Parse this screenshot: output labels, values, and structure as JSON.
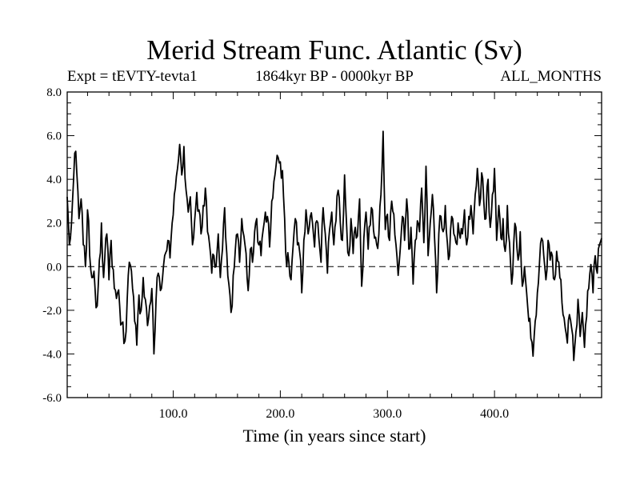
{
  "chart_data": {
    "type": "line",
    "title": "Merid Stream Func. Atlantic (Sv)",
    "subtitle": "1864kyr BP - 0000kyr BP",
    "left_label": "Expt = tEVTY-tevta1",
    "right_label": "ALL_MONTHS",
    "xlabel": "Time (in years since start)",
    "ylabel": "",
    "xlim": [
      1,
      500
    ],
    "ylim": [
      -6.0,
      8.0
    ],
    "x_ticks": [
      100,
      200,
      300,
      400
    ],
    "x_tick_labels": [
      "100.0",
      "200.0",
      "300.0",
      "400.0"
    ],
    "y_ticks": [
      -6,
      -4,
      -2,
      0,
      2,
      4,
      6,
      8
    ],
    "y_tick_labels": [
      "-6.0",
      "-4.0",
      "-2.0",
      "0.0",
      "2.0",
      "4.0",
      "6.0",
      "8.0"
    ],
    "reference_line": 0.0,
    "series_color": "#000000",
    "anchor_points": [
      [
        1,
        3.2
      ],
      [
        3,
        1.0
      ],
      [
        5,
        2.0
      ],
      [
        7,
        4.0
      ],
      [
        8,
        5.2
      ],
      [
        10,
        4.3
      ],
      [
        12,
        2.2
      ],
      [
        14,
        3.1
      ],
      [
        16,
        1.0
      ],
      [
        18,
        0.0
      ],
      [
        20,
        2.6
      ],
      [
        22,
        0.5
      ],
      [
        25,
        -0.5
      ],
      [
        27,
        -1.0
      ],
      [
        29,
        -1.8
      ],
      [
        31,
        0.3
      ],
      [
        33,
        2.0
      ],
      [
        35,
        -0.5
      ],
      [
        38,
        1.5
      ],
      [
        40,
        -0.6
      ],
      [
        42,
        1.2
      ],
      [
        45,
        -1.0
      ],
      [
        48,
        -1.2
      ],
      [
        50,
        -1.8
      ],
      [
        52,
        -2.6
      ],
      [
        55,
        -3.4
      ],
      [
        57,
        -1.5
      ],
      [
        59,
        0.2
      ],
      [
        62,
        -1.0
      ],
      [
        64,
        -2.5
      ],
      [
        66,
        -3.6
      ],
      [
        68,
        -1.3
      ],
      [
        70,
        -2.0
      ],
      [
        72,
        -0.5
      ],
      [
        74,
        -1.5
      ],
      [
        76,
        -2.7
      ],
      [
        78,
        -1.8
      ],
      [
        80,
        -1.0
      ],
      [
        82,
        -4.0
      ],
      [
        84,
        -1.5
      ],
      [
        86,
        -0.3
      ],
      [
        89,
        -1.0
      ],
      [
        92,
        0.5
      ],
      [
        95,
        1.2
      ],
      [
        97,
        0.4
      ],
      [
        99,
        2.0
      ],
      [
        102,
        3.6
      ],
      [
        104,
        4.5
      ],
      [
        106,
        5.6
      ],
      [
        108,
        4.2
      ],
      [
        110,
        5.5
      ],
      [
        112,
        3.5
      ],
      [
        114,
        2.5
      ],
      [
        116,
        3.2
      ],
      [
        118,
        1.0
      ],
      [
        120,
        2.1
      ],
      [
        122,
        3.4
      ],
      [
        124,
        2.6
      ],
      [
        126,
        1.5
      ],
      [
        128,
        2.8
      ],
      [
        130,
        3.6
      ],
      [
        132,
        1.6
      ],
      [
        134,
        1.0
      ],
      [
        136,
        -0.3
      ],
      [
        138,
        0.5
      ],
      [
        140,
        0.0
      ],
      [
        142,
        1.5
      ],
      [
        144,
        -0.5
      ],
      [
        146,
        0.8
      ],
      [
        148,
        2.7
      ],
      [
        150,
        0.6
      ],
      [
        152,
        -0.8
      ],
      [
        154,
        -2.1
      ],
      [
        156,
        -0.4
      ],
      [
        158,
        0.8
      ],
      [
        160,
        1.5
      ],
      [
        162,
        0.2
      ],
      [
        164,
        2.2
      ],
      [
        166,
        1.4
      ],
      [
        168,
        0.6
      ],
      [
        170,
        -1.1
      ],
      [
        172,
        0.8
      ],
      [
        174,
        0.2
      ],
      [
        176,
        1.6
      ],
      [
        178,
        2.2
      ],
      [
        180,
        1.0
      ],
      [
        182,
        0.5
      ],
      [
        184,
        1.7
      ],
      [
        186,
        2.5
      ],
      [
        188,
        2.3
      ],
      [
        190,
        0.9
      ],
      [
        192,
        3.0
      ],
      [
        194,
        3.9
      ],
      [
        196,
        4.6
      ],
      [
        198,
        5.0
      ],
      [
        200,
        4.8
      ],
      [
        202,
        4.4
      ],
      [
        204,
        2.2
      ],
      [
        206,
        0.0
      ],
      [
        208,
        0.2
      ],
      [
        210,
        -0.6
      ],
      [
        212,
        1.0
      ],
      [
        214,
        2.2
      ],
      [
        216,
        1.0
      ],
      [
        218,
        0.7
      ],
      [
        220,
        -1.2
      ],
      [
        222,
        1.2
      ],
      [
        224,
        2.6
      ],
      [
        226,
        1.5
      ],
      [
        228,
        2.3
      ],
      [
        230,
        2.0
      ],
      [
        232,
        0.9
      ],
      [
        234,
        2.1
      ],
      [
        236,
        1.3
      ],
      [
        238,
        0.2
      ],
      [
        240,
        2.7
      ],
      [
        242,
        1.5
      ],
      [
        244,
        -0.3
      ],
      [
        246,
        1.7
      ],
      [
        248,
        2.5
      ],
      [
        250,
        1.0
      ],
      [
        252,
        2.1
      ],
      [
        254,
        3.5
      ],
      [
        256,
        2.0
      ],
      [
        258,
        1.2
      ],
      [
        260,
        4.2
      ],
      [
        262,
        1.8
      ],
      [
        264,
        0.5
      ],
      [
        266,
        2.2
      ],
      [
        268,
        0.6
      ],
      [
        270,
        1.8
      ],
      [
        272,
        1.4
      ],
      [
        274,
        3.1
      ],
      [
        276,
        -0.9
      ],
      [
        278,
        1.3
      ],
      [
        280,
        2.5
      ],
      [
        282,
        0.8
      ],
      [
        284,
        1.9
      ],
      [
        286,
        2.6
      ],
      [
        288,
        1.3
      ],
      [
        290,
        1.0
      ],
      [
        292,
        1.5
      ],
      [
        294,
        3.3
      ],
      [
        296,
        6.2
      ],
      [
        298,
        1.7
      ],
      [
        300,
        2.4
      ],
      [
        302,
        1.2
      ],
      [
        304,
        3.0
      ],
      [
        306,
        2.4
      ],
      [
        308,
        1.0
      ],
      [
        310,
        -0.4
      ],
      [
        312,
        0.8
      ],
      [
        314,
        2.3
      ],
      [
        316,
        1.2
      ],
      [
        318,
        3.1
      ],
      [
        320,
        0.8
      ],
      [
        322,
        1.8
      ],
      [
        324,
        -0.8
      ],
      [
        326,
        1.2
      ],
      [
        328,
        2.1
      ],
      [
        330,
        1.6
      ],
      [
        332,
        3.6
      ],
      [
        334,
        1.1
      ],
      [
        336,
        4.6
      ],
      [
        338,
        0.5
      ],
      [
        340,
        2.0
      ],
      [
        342,
        3.3
      ],
      [
        344,
        1.3
      ],
      [
        346,
        -1.2
      ],
      [
        348,
        1.5
      ],
      [
        350,
        2.3
      ],
      [
        352,
        1.6
      ],
      [
        354,
        2.8
      ],
      [
        356,
        1.1
      ],
      [
        358,
        0.5
      ],
      [
        360,
        2.3
      ],
      [
        362,
        1.5
      ],
      [
        364,
        1.1
      ],
      [
        366,
        2.0
      ],
      [
        368,
        1.3
      ],
      [
        370,
        1.5
      ],
      [
        372,
        2.6
      ],
      [
        374,
        1.0
      ],
      [
        376,
        2.3
      ],
      [
        378,
        2.8
      ],
      [
        380,
        1.5
      ],
      [
        382,
        3.3
      ],
      [
        384,
        4.5
      ],
      [
        386,
        2.8
      ],
      [
        388,
        4.3
      ],
      [
        390,
        3.0
      ],
      [
        392,
        2.2
      ],
      [
        394,
        4.0
      ],
      [
        396,
        1.8
      ],
      [
        398,
        3.3
      ],
      [
        400,
        4.5
      ],
      [
        402,
        1.2
      ],
      [
        404,
        2.8
      ],
      [
        406,
        1.3
      ],
      [
        408,
        2.2
      ],
      [
        410,
        0.7
      ],
      [
        412,
        2.8
      ],
      [
        414,
        1.1
      ],
      [
        416,
        -0.8
      ],
      [
        418,
        1.1
      ],
      [
        420,
        1.8
      ],
      [
        422,
        0.3
      ],
      [
        424,
        1.6
      ],
      [
        426,
        -0.9
      ],
      [
        428,
        0.0
      ],
      [
        430,
        -1.2
      ],
      [
        432,
        -2.5
      ],
      [
        434,
        -3.3
      ],
      [
        436,
        -4.1
      ],
      [
        438,
        -2.5
      ],
      [
        440,
        -1.2
      ],
      [
        442,
        0.2
      ],
      [
        444,
        1.3
      ],
      [
        446,
        0.5
      ],
      [
        448,
        -0.6
      ],
      [
        450,
        1.2
      ],
      [
        452,
        0.3
      ],
      [
        454,
        0.5
      ],
      [
        456,
        -0.6
      ],
      [
        458,
        0.7
      ],
      [
        460,
        0.2
      ],
      [
        462,
        -0.6
      ],
      [
        464,
        -2.2
      ],
      [
        466,
        -2.8
      ],
      [
        468,
        -3.5
      ],
      [
        470,
        -2.2
      ],
      [
        472,
        -2.8
      ],
      [
        474,
        -4.3
      ],
      [
        476,
        -3.0
      ],
      [
        478,
        -1.5
      ],
      [
        480,
        -3.2
      ],
      [
        482,
        -2.1
      ],
      [
        484,
        -3.7
      ],
      [
        486,
        -2.3
      ],
      [
        488,
        -1.0
      ],
      [
        490,
        0.1
      ],
      [
        492,
        -1.2
      ],
      [
        494,
        0.5
      ],
      [
        496,
        -0.3
      ],
      [
        498,
        1.0
      ],
      [
        500,
        1.3
      ]
    ]
  }
}
